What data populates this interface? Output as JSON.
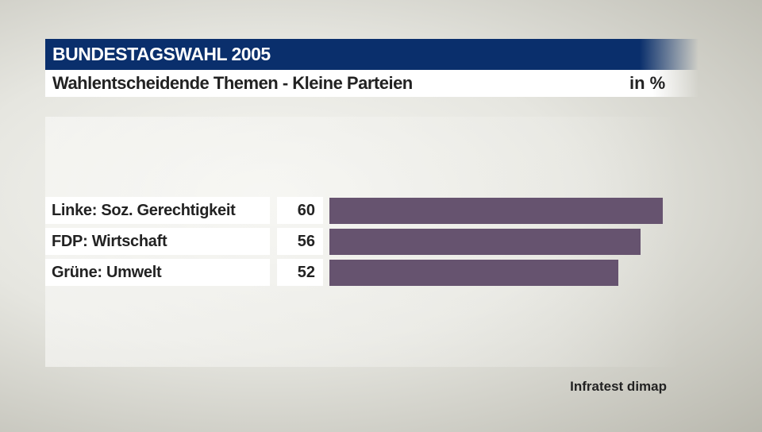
{
  "header": {
    "title": "BUNDESTAGSWAHL 2005",
    "subtitle": "Wahlentscheidende Themen - Kleine Parteien",
    "unit": "in %"
  },
  "chart_data": {
    "type": "bar",
    "orientation": "horizontal",
    "categories": [
      "Linke: Soz. Gerechtigkeit",
      "FDP: Wirtschaft",
      "Grüne: Umwelt"
    ],
    "values": [
      60,
      56,
      52
    ],
    "labels": [
      "60",
      "56",
      "52"
    ],
    "bar_color": "#66536f",
    "title": "Wahlentscheidende Themen - Kleine Parteien",
    "unit": "in %"
  },
  "source": "Infratest dimap",
  "colors": {
    "header": "#0a2f6c",
    "bar": "#66536f"
  }
}
